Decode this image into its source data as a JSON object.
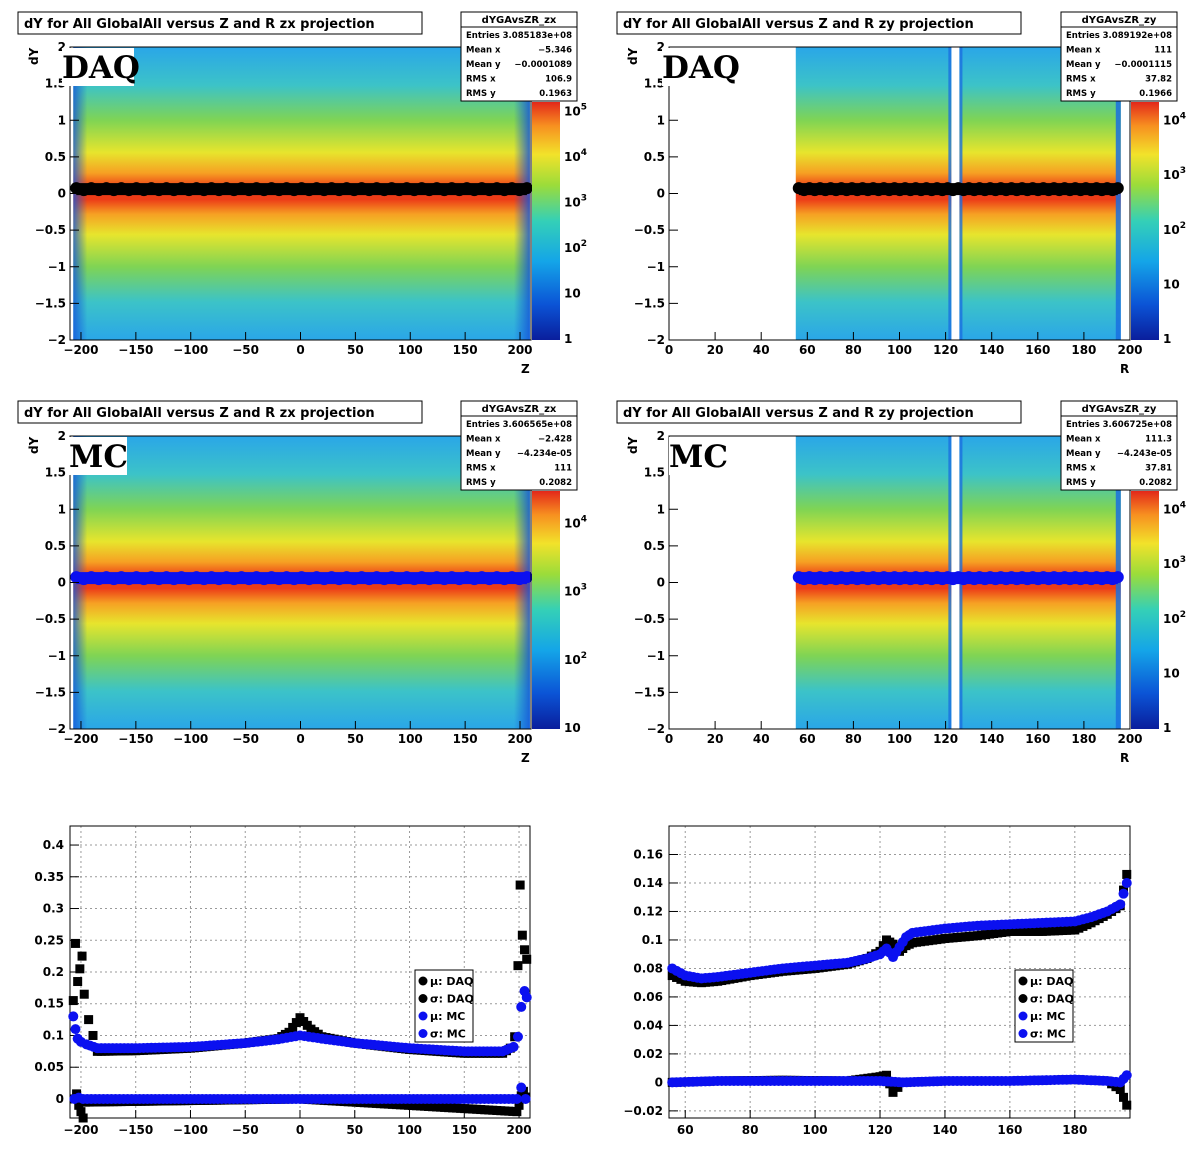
{
  "colors": {
    "daq": "#000000",
    "mc": "#0b10f0",
    "frame": "#000000",
    "grid": "#9a9a9a"
  },
  "chart_data": [
    {
      "type": "heatmap",
      "title": "dY for All GlobalAll versus Z and R zx projection",
      "label": "DAQ",
      "xlabel": "Z",
      "ylabel": "dY",
      "xlim": [
        -210,
        210
      ],
      "ylim": [
        -2,
        2
      ],
      "xticks": [
        -200,
        -150,
        -100,
        -50,
        0,
        50,
        100,
        150,
        200
      ],
      "yticks": [
        -2,
        -1.5,
        -1,
        -0.5,
        0,
        0.5,
        1,
        1.5,
        2
      ],
      "colz": [
        "1",
        "10",
        "10^2",
        "10^3",
        "10^4",
        "10^5"
      ],
      "profile_series": "daq",
      "stats": {
        "name": "dYGAvsZR_zx",
        "rows": [
          [
            "Entries",
            "3.085183e+08"
          ],
          [
            "Mean x",
            "-5.346"
          ],
          [
            "Mean y",
            "-0.0001089"
          ],
          [
            "RMS x",
            "106.9"
          ],
          [
            "RMS y",
            "0.1963"
          ]
        ]
      }
    },
    {
      "type": "heatmap",
      "title": "dY for All GlobalAll versus Z and R zy projection",
      "label": "DAQ",
      "xlabel": "R",
      "ylabel": "dY",
      "xlim": [
        0,
        200
      ],
      "ylim": [
        -2,
        2
      ],
      "xticks": [
        0,
        20,
        40,
        60,
        80,
        100,
        120,
        140,
        160,
        180,
        200
      ],
      "yticks": [
        -2,
        -1.5,
        -1,
        -0.5,
        0,
        0.5,
        1,
        1.5,
        2
      ],
      "colz": [
        "1",
        "10",
        "10^2",
        "10^3",
        "10^4"
      ],
      "profile_series": "daq",
      "stats": {
        "name": "dYGAvsZR_zy",
        "rows": [
          [
            "Entries",
            "3.089192e+08"
          ],
          [
            "Mean x",
            "111"
          ],
          [
            "Mean y",
            "-0.0001115"
          ],
          [
            "RMS x",
            "37.82"
          ],
          [
            "RMS y",
            "0.1966"
          ]
        ]
      }
    },
    {
      "type": "heatmap",
      "title": "dY for All GlobalAll versus Z and R zx projection",
      "label": "MC",
      "xlabel": "Z",
      "ylabel": "dY",
      "xlim": [
        -210,
        210
      ],
      "ylim": [
        -2,
        2
      ],
      "xticks": [
        -200,
        -150,
        -100,
        -50,
        0,
        50,
        100,
        150,
        200
      ],
      "yticks": [
        -2,
        -1.5,
        -1,
        -0.5,
        0,
        0.5,
        1,
        1.5,
        2
      ],
      "colz": [
        "10",
        "10^2",
        "10^3",
        "10^4"
      ],
      "profile_series": "mc",
      "stats": {
        "name": "dYGAvsZR_zx",
        "rows": [
          [
            "Entries",
            "3.606565e+08"
          ],
          [
            "Mean x",
            "-2.428"
          ],
          [
            "Mean y",
            "-4.234e-05"
          ],
          [
            "RMS x",
            "111"
          ],
          [
            "RMS y",
            "0.2082"
          ]
        ]
      }
    },
    {
      "type": "heatmap",
      "title": "dY for All GlobalAll versus Z and R zy projection",
      "label": "MC",
      "xlabel": "R",
      "ylabel": "dY",
      "xlim": [
        0,
        200
      ],
      "ylim": [
        -2,
        2
      ],
      "xticks": [
        0,
        20,
        40,
        60,
        80,
        100,
        120,
        140,
        160,
        180,
        200
      ],
      "yticks": [
        -2,
        -1.5,
        -1,
        -0.5,
        0,
        0.5,
        1,
        1.5,
        2
      ],
      "colz": [
        "1",
        "10",
        "10^2",
        "10^3",
        "10^4"
      ],
      "profile_series": "mc",
      "stats": {
        "name": "dYGAvsZR_zy",
        "rows": [
          [
            "Entries",
            "3.606725e+08"
          ],
          [
            "Mean x",
            "111.3"
          ],
          [
            "Mean y",
            "-4.243e-05"
          ],
          [
            "RMS x",
            "37.81"
          ],
          [
            "RMS y",
            "0.2082"
          ]
        ]
      }
    },
    {
      "type": "scatter",
      "xlim": [
        -210,
        210
      ],
      "ylim": [
        -0.03,
        0.43
      ],
      "xticks": [
        -200,
        -150,
        -100,
        -50,
        0,
        50,
        100,
        150,
        200
      ],
      "yticks": [
        0,
        0.05,
        0.1,
        0.15,
        0.2,
        0.25,
        0.3,
        0.35,
        0.4
      ],
      "grid": true,
      "legend": "right",
      "legend_entries": [
        "μ: DAQ",
        "σ: DAQ",
        "μ: MC",
        "σ: MC"
      ],
      "series": [
        {
          "legend": "μ: DAQ",
          "color": "#000000",
          "marker": "square",
          "x": [
            -206,
            -204,
            -202,
            -200,
            -198,
            -196,
            0,
            198,
            200,
            202,
            204,
            206
          ],
          "y": [
            0.0,
            0.008,
            -0.01,
            -0.02,
            -0.03,
            -0.005,
            0.0,
            -0.02,
            -0.01,
            0.005,
            0.012,
            0.003
          ]
        },
        {
          "legend": "σ: DAQ",
          "color": "#000000",
          "marker": "square",
          "x": [
            -207,
            -205,
            -203,
            -201,
            -199,
            -197,
            -193,
            -185,
            -150,
            -100,
            -50,
            -20,
            -10,
            0,
            10,
            20,
            50,
            100,
            150,
            185,
            192,
            196,
            199,
            201,
            203,
            205,
            207
          ],
          "y": [
            0.155,
            0.245,
            0.185,
            0.205,
            0.225,
            0.165,
            0.125,
            0.075,
            0.076,
            0.08,
            0.088,
            0.095,
            0.105,
            0.128,
            0.11,
            0.098,
            0.088,
            0.078,
            0.072,
            0.072,
            0.08,
            0.098,
            0.21,
            0.337,
            0.258,
            0.235,
            0.22
          ]
        },
        {
          "legend": "μ: MC",
          "color": "#0b10f0",
          "marker": "circle",
          "x": [
            -206,
            -202,
            -198,
            -150,
            -100,
            -50,
            0,
            50,
            100,
            150,
            198,
            202,
            206
          ],
          "y": [
            0.0,
            0.002,
            0.0,
            0.0,
            0.0,
            0.0,
            0.0,
            0.0,
            0.0,
            0.0,
            0.0,
            0.018,
            0.0
          ]
        },
        {
          "legend": "σ: MC",
          "color": "#0b10f0",
          "marker": "circle",
          "x": [
            -207,
            -205,
            -203,
            -200,
            -195,
            -185,
            -150,
            -100,
            -50,
            -20,
            0,
            20,
            50,
            100,
            150,
            185,
            195,
            199,
            202,
            205,
            207
          ],
          "y": [
            0.13,
            0.11,
            0.095,
            0.09,
            0.086,
            0.08,
            0.08,
            0.082,
            0.088,
            0.094,
            0.1,
            0.095,
            0.088,
            0.08,
            0.075,
            0.075,
            0.082,
            0.098,
            0.145,
            0.17,
            0.16
          ]
        }
      ]
    },
    {
      "type": "scatter",
      "xlim": [
        55,
        197
      ],
      "ylim": [
        -0.025,
        0.18
      ],
      "xticks": [
        60,
        80,
        100,
        120,
        140,
        160,
        180
      ],
      "yticks": [
        -0.02,
        0,
        0.02,
        0.04,
        0.06,
        0.08,
        0.1,
        0.12,
        0.14,
        0.16
      ],
      "grid": true,
      "legend": "right",
      "legend_entries": [
        "μ: DAQ",
        "σ: DAQ",
        "μ: MC",
        "σ: MC"
      ],
      "series": [
        {
          "legend": "μ: DAQ",
          "color": "#000000",
          "marker": "square",
          "x": [
            56,
            70,
            90,
            110,
            120,
            122,
            124,
            127,
            140,
            160,
            180,
            190,
            194,
            196
          ],
          "y": [
            0.0,
            0.001,
            0.0015,
            0.001,
            0.004,
            0.005,
            -0.007,
            0.0,
            0.001,
            0.001,
            0.002,
            0.001,
            -0.005,
            -0.016
          ]
        },
        {
          "legend": "σ: DAQ",
          "color": "#000000",
          "marker": "square",
          "x": [
            56,
            60,
            65,
            70,
            80,
            90,
            100,
            110,
            116,
            120,
            122,
            124,
            126,
            128,
            130,
            140,
            150,
            160,
            170,
            180,
            185,
            190,
            194,
            196
          ],
          "y": [
            0.075,
            0.071,
            0.07,
            0.071,
            0.075,
            0.078,
            0.08,
            0.083,
            0.087,
            0.092,
            0.1,
            0.097,
            0.092,
            0.096,
            0.098,
            0.101,
            0.103,
            0.106,
            0.106,
            0.107,
            0.112,
            0.118,
            0.124,
            0.146
          ]
        },
        {
          "legend": "μ: MC",
          "color": "#0b10f0",
          "marker": "circle",
          "x": [
            56,
            70,
            90,
            110,
            120,
            127,
            140,
            160,
            180,
            190,
            194,
            196
          ],
          "y": [
            0.0,
            0.001,
            0.001,
            0.001,
            0.001,
            0.0,
            0.001,
            0.001,
            0.002,
            0.001,
            0.0,
            0.005
          ]
        },
        {
          "legend": "σ: MC",
          "color": "#0b10f0",
          "marker": "circle",
          "x": [
            56,
            60,
            65,
            70,
            80,
            90,
            100,
            110,
            116,
            120,
            122,
            124,
            126,
            128,
            130,
            140,
            150,
            160,
            170,
            180,
            185,
            190,
            194,
            196
          ],
          "y": [
            0.08,
            0.075,
            0.073,
            0.074,
            0.077,
            0.08,
            0.082,
            0.084,
            0.087,
            0.09,
            0.094,
            0.088,
            0.095,
            0.102,
            0.105,
            0.108,
            0.11,
            0.111,
            0.112,
            0.113,
            0.116,
            0.12,
            0.125,
            0.14
          ]
        }
      ]
    }
  ]
}
